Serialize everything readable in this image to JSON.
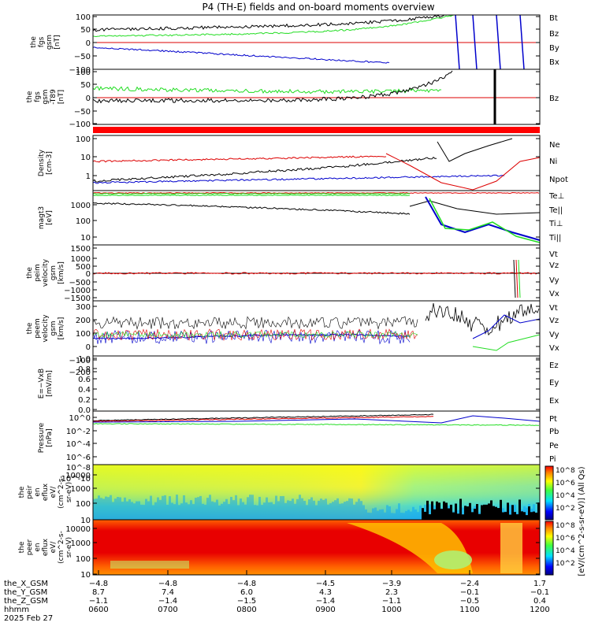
{
  "title": "P4 (TH-E) fields and on-board moments overview",
  "colors": {
    "black": "#000000",
    "red": "#dd0000",
    "green": "#22dd22",
    "blue": "#0000cc",
    "band": "#ff0000"
  },
  "panels": [
    {
      "id": "fgs-gsm",
      "ylabel": [
        "the",
        "fgs",
        "gsm",
        "[nT]"
      ],
      "yticks": [
        "100",
        "50",
        "0",
        "−50",
        "−100"
      ],
      "legend": [
        {
          "text": "Bt",
          "color": "#000000"
        },
        {
          "text": "Bz",
          "color": "#dd0000"
        },
        {
          "text": "By",
          "color": "#22dd22"
        },
        {
          "text": "Bx",
          "color": "#0000cc"
        }
      ]
    },
    {
      "id": "fgs-gsm-dbz",
      "ylabel": [
        "the",
        "fgs",
        "gsm",
        "-T89",
        "[nT]"
      ],
      "yticks": [
        "100",
        "50",
        "0",
        "−50",
        "−100"
      ],
      "legend": [
        {
          "text": "Bz",
          "color": "#dd0000"
        }
      ]
    },
    {
      "id": "density",
      "ylabel": [
        "Density",
        "[cm-3]"
      ],
      "yticks": [
        "100",
        "10",
        "1"
      ],
      "legend": [
        {
          "text": "Ne",
          "color": "#dd0000"
        },
        {
          "text": "Ni",
          "color": "#000000"
        },
        {
          "text": "Npot",
          "color": "#0000cc"
        }
      ]
    },
    {
      "id": "temperature",
      "ylabel": [
        "magt3",
        "[eV]"
      ],
      "yticks": [
        "1000",
        "100",
        "10"
      ],
      "legend": [
        {
          "text": "Te⊥",
          "color": "#dd0000"
        },
        {
          "text": "Te||",
          "color": "#000000"
        },
        {
          "text": "Ti⊥",
          "color": "#22dd22"
        },
        {
          "text": "Ti||",
          "color": "#22dd22"
        }
      ]
    },
    {
      "id": "peim-velocity",
      "ylabel": [
        "the",
        "peim",
        "velocity",
        "gsm",
        "[km/s]"
      ],
      "yticks": [
        "1500",
        "1000",
        "500",
        "0",
        "−500",
        "−1000",
        "−1500"
      ],
      "legend": [
        {
          "text": "Vt",
          "color": "#000000"
        },
        {
          "text": "Vz",
          "color": "#dd0000"
        },
        {
          "text": "Vy",
          "color": "#22dd22"
        },
        {
          "text": "Vx",
          "color": "#0000cc"
        }
      ]
    },
    {
      "id": "peem-velocity",
      "ylabel": [
        "the",
        "peem",
        "velocity",
        "gsm",
        "[km/s]"
      ],
      "yticks": [
        "300",
        "200",
        "100",
        "0",
        "−100",
        "−200"
      ],
      "legend": [
        {
          "text": "Vt",
          "color": "#000000"
        },
        {
          "text": "Vz",
          "color": "#dd0000"
        },
        {
          "text": "Vy",
          "color": "#22dd22"
        },
        {
          "text": "Vx",
          "color": "#0000cc"
        }
      ]
    },
    {
      "id": "efield",
      "ylabel": [
        "E=−VxB",
        "[mV/m]"
      ],
      "yticks": [
        "1.0",
        "0.8",
        "0.6",
        "0.4",
        "0.2",
        "0.0"
      ],
      "legend": [
        {
          "text": "Ez",
          "color": "#dd0000"
        },
        {
          "text": "Ey",
          "color": "#22dd22"
        },
        {
          "text": "Ex",
          "color": "#0000cc"
        }
      ]
    },
    {
      "id": "pressure",
      "ylabel": [
        "Pressure",
        "[nPa]"
      ],
      "yticks": [
        "10^0",
        "10^-2",
        "10^-4",
        "10^-6",
        "10^-8",
        "10^-10"
      ],
      "legend": [
        {
          "text": "Pt",
          "color": "#000000"
        },
        {
          "text": "Pb",
          "color": "#dd0000"
        },
        {
          "text": "Pe",
          "color": "#22dd22"
        },
        {
          "text": "Pi",
          "color": "#0000cc"
        }
      ]
    },
    {
      "id": "peir-spectrogram",
      "ylabel": [
        "the",
        "peir",
        "en",
        "eflux",
        "eV/",
        "(cm^2-s-",
        "sr-eV)"
      ],
      "yticks": [
        "10000",
        "1000",
        "100",
        "10"
      ],
      "legend": []
    },
    {
      "id": "peer-spectrogram",
      "ylabel": [
        "the",
        "peer",
        "en",
        "eflux",
        "eV/",
        "(cm^2-s-",
        "sr-eV)"
      ],
      "yticks": [
        "10000",
        "1000",
        "100",
        "10"
      ],
      "legend": []
    }
  ],
  "colorbar": {
    "label": "[eV/(cm^2-s-sr-eV)] (All Qs)",
    "ticks": [
      "10^8",
      "10^6",
      "10^4",
      "10^2"
    ]
  },
  "x_axis": {
    "rows": [
      {
        "label": "the_X_GSM",
        "values": [
          "−4.8",
          "−4.8",
          "−4.8",
          "−4.5",
          "−3.9",
          "−2.4",
          "1.7"
        ]
      },
      {
        "label": "the_Y_GSM",
        "values": [
          "8.7",
          "7.4",
          "6.0",
          "4.3",
          "2.3",
          "−0.1",
          "−0.1"
        ]
      },
      {
        "label": "the_Z_GSM",
        "values": [
          "−1.1",
          "−1.4",
          "−1.5",
          "−1.4",
          "−1.1",
          "−0.5",
          "0.4"
        ]
      },
      {
        "label": "hhmm",
        "values": [
          "0600",
          "0700",
          "0800",
          "0900",
          "1000",
          "1100",
          "1200"
        ]
      }
    ],
    "date": "2025 Feb 27"
  },
  "chart_data": {
    "type": "line",
    "title": "P4 (TH-E) fields and on-board moments overview",
    "x": [
      "0600",
      "0700",
      "0800",
      "0900",
      "1000",
      "1100",
      "1200"
    ],
    "xlabel": "hhmm",
    "date": "2025 Feb 27",
    "panels": [
      {
        "id": "fgs-gsm",
        "ylim": [
          -100,
          100
        ],
        "scale": "linear",
        "series": [
          {
            "name": "Bt",
            "values": [
              30,
              45,
              48,
              52,
              60,
              85,
              100
            ]
          },
          {
            "name": "Bz",
            "values": [
              0,
              0,
              0,
              0,
              0,
              0,
              0
            ]
          },
          {
            "name": "By",
            "values": [
              20,
              35,
              35,
              40,
              50,
              90,
              100
            ]
          },
          {
            "name": "Bx",
            "values": [
              -25,
              -35,
              -45,
              -60,
              -85,
              -100,
              -100
            ]
          }
        ]
      },
      {
        "id": "fgs-gsm-dbz",
        "ylim": [
          -125,
          100
        ],
        "scale": "linear",
        "series": [
          {
            "name": "Bz",
            "values": [
              0,
              0,
              0,
              0,
              0,
              0,
              0
            ]
          },
          {
            "name": "Bt",
            "values": [
              -10,
              -5,
              0,
              5,
              20,
              100,
              100
            ]
          },
          {
            "name": "By",
            "values": [
              20,
              15,
              10,
              10,
              40,
              100,
              100
            ]
          }
        ]
      },
      {
        "id": "density",
        "ylim": [
          0.3,
          100
        ],
        "scale": "log",
        "series": [
          {
            "name": "Ne",
            "values": [
              4,
              2,
              2.5,
              3,
              5,
              0.5,
              10
            ]
          },
          {
            "name": "Ni",
            "values": [
              0.5,
              1,
              1.5,
              2.5,
              8,
              15,
              50
            ]
          },
          {
            "name": "Npot",
            "values": [
              0.4,
              0.6,
              0.7,
              0.8,
              1.5,
              1.5,
              0.5
            ]
          }
        ]
      },
      {
        "id": "temperature",
        "ylim": [
          5,
          5000
        ],
        "scale": "log",
        "series": [
          {
            "name": "Te⊥",
            "values": [
              3000,
              3000,
              3000,
              3000,
              3000,
              3000,
              2000
            ]
          },
          {
            "name": "Te||",
            "values": [
              1000,
              1500,
              1500,
              400,
              250,
              1000,
              500
            ]
          },
          {
            "name": "Ti⊥",
            "values": [
              3000,
              3000,
              3000,
              3000,
              2500,
              40,
              40
            ]
          },
          {
            "name": "Ti||",
            "values": [
              3000,
              3000,
              3000,
              3000,
              2500,
              30,
              10
            ]
          }
        ]
      },
      {
        "id": "peim-velocity",
        "ylim": [
          -1500,
          1500
        ],
        "scale": "linear",
        "series": [
          {
            "name": "Vt",
            "values": [
              20,
              20,
              20,
              20,
              20,
              20,
              500
            ]
          },
          {
            "name": "Vz",
            "values": [
              0,
              0,
              0,
              0,
              0,
              0,
              0
            ]
          },
          {
            "name": "Vy",
            "values": [
              0,
              0,
              0,
              0,
              0,
              0,
              0
            ]
          },
          {
            "name": "Vx",
            "values": [
              0,
              0,
              0,
              0,
              0,
              0,
              0
            ]
          }
        ]
      },
      {
        "id": "peem-velocity",
        "ylim": [
          -250,
          350
        ],
        "scale": "linear",
        "series": [
          {
            "name": "Vt",
            "values": [
              80,
              70,
              60,
              40,
              30,
              150,
              80
            ]
          },
          {
            "name": "Vz",
            "values": [
              -20,
              -20,
              -20,
              0,
              10,
              20,
              50
            ]
          },
          {
            "name": "Vy",
            "values": [
              -40,
              -40,
              -40,
              -20,
              -10,
              -100,
              -80
            ]
          },
          {
            "name": "Vx",
            "values": [
              -60,
              -60,
              -60,
              -40,
              -20,
              -100,
              30
            ]
          }
        ]
      },
      {
        "id": "efield",
        "ylim": [
          0,
          1
        ],
        "scale": "linear",
        "series": [
          {
            "name": "Ez",
            "values": []
          },
          {
            "name": "Ey",
            "values": []
          },
          {
            "name": "Ex",
            "values": []
          }
        ]
      },
      {
        "id": "pressure",
        "ylim": [
          1e-10,
          1
        ],
        "scale": "log",
        "series": [
          {
            "name": "Pt",
            "values": [
              0.2,
              0.3,
              0.4,
              0.6,
              1,
              1,
              1
            ]
          },
          {
            "name": "Pb",
            "values": [
              0.15,
              0.25,
              0.35,
              0.5,
              0.8,
              1,
              1
            ]
          },
          {
            "name": "Pe",
            "values": [
              0.1,
              0.1,
              0.1,
              0.1,
              0.05,
              0.03,
              0.05
            ]
          },
          {
            "name": "Pi",
            "values": [
              0.1,
              0.2,
              0.3,
              0.5,
              0.8,
              0.2,
              0.3
            ]
          }
        ]
      }
    ]
  }
}
